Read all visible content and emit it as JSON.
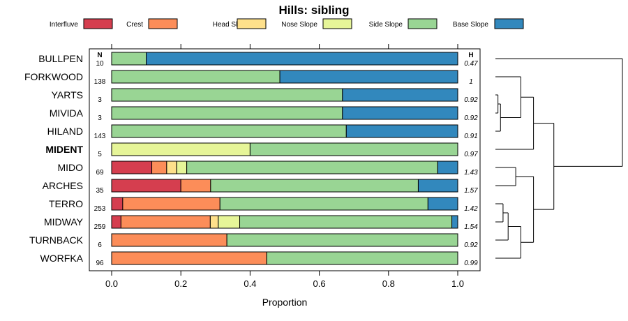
{
  "chart_data": {
    "type": "bar",
    "orientation": "horizontal",
    "stacked": true,
    "title": "Hills: sibling",
    "xlabel": "Proportion",
    "xlim": [
      0,
      1
    ],
    "xticks": [
      "0.0",
      "0.2",
      "0.4",
      "0.6",
      "0.8",
      "1.0"
    ],
    "n_header": "N",
    "h_header": "H",
    "legend": [
      {
        "name": "Interfluve",
        "color": "#d53e4f"
      },
      {
        "name": "Crest",
        "color": "#fc8d59"
      },
      {
        "name": "Head Slope",
        "color": "#fee08b"
      },
      {
        "name": "Nose Slope",
        "color": "#e6f598"
      },
      {
        "name": "Side Slope",
        "color": "#99d594"
      },
      {
        "name": "Base Slope",
        "color": "#3288bd"
      }
    ],
    "categories": [
      "BULLPEN",
      "FORKWOOD",
      "YARTS",
      "MIVIDA",
      "HILAND",
      "MIDENT",
      "MIDO",
      "ARCHES",
      "TERRO",
      "MIDWAY",
      "TURNBACK",
      "WORFKA"
    ],
    "highlight": "MIDENT",
    "n": [
      "10",
      "138",
      "3",
      "3",
      "143",
      "5",
      "69",
      "35",
      "253",
      "259",
      "6",
      "96"
    ],
    "h": [
      "0.47",
      "1",
      "0.92",
      "0.92",
      "0.91",
      "0.97",
      "1.43",
      "1.57",
      "1.42",
      "1.54",
      "0.92",
      "0.99"
    ],
    "series": [
      {
        "name": "Interfluve",
        "values": [
          0,
          0,
          0,
          0,
          0,
          0,
          0.116,
          0.2,
          0.032,
          0.027,
          0,
          0
        ]
      },
      {
        "name": "Crest",
        "values": [
          0,
          0,
          0,
          0,
          0,
          0,
          0.043,
          0.086,
          0.281,
          0.258,
          0.333,
          0.448
        ]
      },
      {
        "name": "Head Slope",
        "values": [
          0,
          0,
          0,
          0,
          0,
          0,
          0.029,
          0,
          0,
          0.023,
          0,
          0
        ]
      },
      {
        "name": "Nose Slope",
        "values": [
          0,
          0,
          0,
          0,
          0,
          0.4,
          0.029,
          0,
          0,
          0.062,
          0,
          0
        ]
      },
      {
        "name": "Side Slope",
        "values": [
          0.1,
          0.486,
          0.667,
          0.667,
          0.678,
          0.6,
          0.725,
          0.6,
          0.601,
          0.613,
          0.667,
          0.552
        ]
      },
      {
        "name": "Base Slope",
        "values": [
          0.9,
          0.514,
          0.333,
          0.333,
          0.322,
          0,
          0.058,
          0.114,
          0.086,
          0.017,
          0,
          0
        ]
      }
    ],
    "dendrogram": {
      "leaves": [
        "BULLPEN",
        "FORKWOOD",
        "YARTS",
        "MIVIDA",
        "HILAND",
        "MIDENT",
        "MIDO",
        "ARCHES",
        "TERRO",
        "MIDWAY",
        "TURNBACK",
        "WORFKA"
      ],
      "merges": [
        {
          "a": "YARTS",
          "b": "MIVIDA",
          "height": 0.02
        },
        {
          "a": "L:YARTS+MIVIDA",
          "b": "HILAND",
          "height": 0.04
        },
        {
          "a": "L:YARTS+MIVIDA+HILAND",
          "b": "FORKWOOD",
          "height": 0.2
        },
        {
          "a": "TERRO",
          "b": "MIDWAY",
          "height": 0.06
        },
        {
          "a": "L:TERRO+MIDWAY",
          "b": "TURNBACK",
          "height": 0.1
        },
        {
          "a": "MIDO",
          "b": "ARCHES",
          "height": 0.16
        },
        {
          "a": "L:TERRO+MIDWAY+TURNBACK",
          "b": "WORFKA",
          "height": 0.2
        },
        {
          "a": "L:YARTS+MIVIDA+HILAND+FORKWOOD",
          "b": "MIDENT",
          "height": 0.3
        },
        {
          "a": "L:MIDO+ARCHES",
          "b": "L:TERRO+MIDWAY+TURNBACK+WORFKA",
          "height": 0.3
        },
        {
          "a": "L:YARTS+MIVIDA+HILAND+FORKWOOD+MIDENT",
          "b": "L:MIDO+ARCHES+TERRO+MIDWAY+TURNBACK+WORFKA",
          "height": 0.46
        },
        {
          "a": "BULLPEN",
          "b": "L:YARTS+MIVIDA+HILAND+FORKWOOD+MIDENT+MIDO+ARCHES+TERRO+MIDWAY+TURNBACK+WORFKA",
          "height": 1.0
        }
      ]
    }
  }
}
